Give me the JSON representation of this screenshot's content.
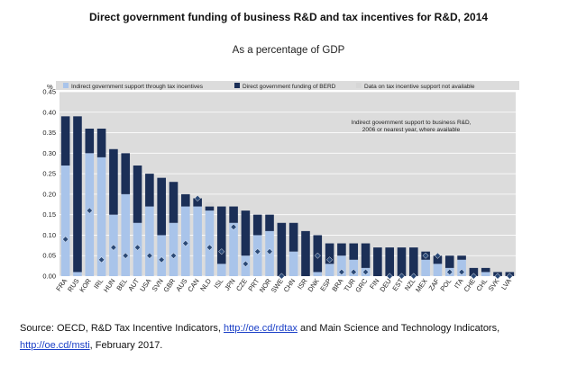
{
  "title": "Direct government funding of business R&D and tax incentives for R&D, 2014",
  "subtitle": "As a percentage of GDP",
  "source": {
    "prefix": "Source: OECD, R&D Tax Incentive Indicators, ",
    "link1": "http://oe.cd/rdtax",
    "middle": " and Main Science and Technology Indicators, ",
    "link2": "http://oe.cd/msti",
    "suffix": ", February 2017."
  },
  "colors": {
    "tax": "#a9c4ea",
    "direct": "#1b2f57",
    "na": "#d6d6d6",
    "marker": "#2b4a78",
    "plot_bg": "#dcdcdc",
    "grid": "#ffffff"
  },
  "chart_data": {
    "type": "bar",
    "stacked": true,
    "ylabel": "%",
    "ylim": [
      0,
      0.45
    ],
    "yticks": [
      0.0,
      0.05,
      0.1,
      0.15,
      0.2,
      0.25,
      0.3,
      0.35,
      0.4,
      0.45
    ],
    "grid": true,
    "legend_position": "top",
    "legend": [
      "Indirect government support through tax incentives",
      "Direct government funding of BERD",
      "Data on tax incentive support not available"
    ],
    "annotation": "Indirect government support to business R&D, 2006 or nearest year, where available",
    "categories": [
      "FRA",
      "RUS",
      "KOR",
      "IRL",
      "HUN",
      "BEL",
      "AUT",
      "USA",
      "SVN",
      "GBR",
      "AUS",
      "CAN",
      "NLD",
      "ISL",
      "JPN",
      "CZE",
      "PRT",
      "NOR",
      "SWE",
      "CHN",
      "ISR",
      "DNK",
      "ESP",
      "BRA",
      "TUR",
      "GRC",
      "FIN",
      "DEU",
      "EST",
      "NZL",
      "MEX",
      "ZAF",
      "POL",
      "ITA",
      "CHE",
      "CHL",
      "SVK",
      "LVA"
    ],
    "series": [
      {
        "name": "Indirect government support through tax incentives",
        "values": [
          0.27,
          0.01,
          0.3,
          0.29,
          0.15,
          0.2,
          0.13,
          0.17,
          0.1,
          0.13,
          0.17,
          0.17,
          0.16,
          0.03,
          0.13,
          0.05,
          0.1,
          0.11,
          0.0,
          0.06,
          0.0,
          0.01,
          0.03,
          0.05,
          0.04,
          0.02,
          0.0,
          0.0,
          0.0,
          0.0,
          0.04,
          0.03,
          0.02,
          0.04,
          0.0,
          0.01,
          0.0,
          0.0
        ]
      },
      {
        "name": "Direct government funding of BERD",
        "values": [
          0.12,
          0.38,
          0.06,
          0.07,
          0.16,
          0.1,
          0.14,
          0.08,
          0.14,
          0.1,
          0.03,
          0.02,
          0.01,
          0.14,
          0.04,
          0.11,
          0.05,
          0.04,
          0.13,
          0.07,
          0.11,
          0.09,
          0.05,
          0.03,
          0.04,
          0.06,
          0.07,
          0.07,
          0.07,
          0.07,
          0.02,
          0.02,
          0.03,
          0.01,
          0.02,
          0.01,
          0.01,
          0.01
        ]
      },
      {
        "name": "Data on tax incentive support not available",
        "values": [
          0,
          0,
          0,
          0,
          0,
          0,
          0,
          0,
          0,
          0,
          0,
          0,
          0.01,
          0,
          0,
          0,
          0,
          0,
          0,
          0,
          0,
          0,
          0,
          0,
          0,
          0,
          0,
          0,
          0,
          0,
          0,
          0,
          0,
          0,
          0,
          0,
          0,
          0
        ]
      }
    ],
    "markers": {
      "name": "Indirect government support to business R&D, 2006 or nearest year, where available",
      "values": [
        0.09,
        null,
        0.16,
        0.04,
        0.07,
        0.05,
        0.07,
        0.05,
        0.04,
        0.05,
        0.08,
        0.19,
        0.07,
        0.06,
        0.12,
        0.03,
        0.06,
        0.06,
        0.0,
        null,
        null,
        0.05,
        0.04,
        0.01,
        0.01,
        0.01,
        null,
        0.0,
        0.0,
        0.0,
        0.05,
        0.05,
        0.01,
        0.01,
        0.0,
        null,
        0.0,
        0.0
      ]
    }
  }
}
